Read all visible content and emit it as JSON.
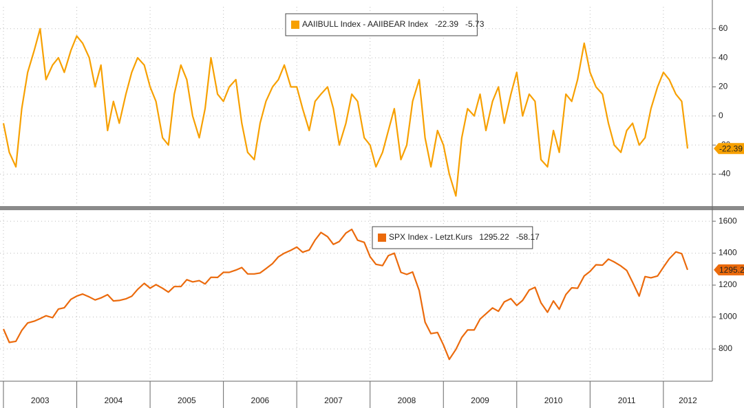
{
  "chart_data": [
    {
      "type": "line",
      "x": [
        2003,
        2003.08,
        2003.17,
        2003.25,
        2003.33,
        2003.42,
        2003.5,
        2003.58,
        2003.67,
        2003.75,
        2003.83,
        2003.92,
        2004,
        2004.08,
        2004.17,
        2004.25,
        2004.33,
        2004.42,
        2004.5,
        2004.58,
        2004.67,
        2004.75,
        2004.83,
        2004.92,
        2005,
        2005.08,
        2005.17,
        2005.25,
        2005.33,
        2005.42,
        2005.5,
        2005.58,
        2005.67,
        2005.75,
        2005.83,
        2005.92,
        2006,
        2006.08,
        2006.17,
        2006.25,
        2006.33,
        2006.42,
        2006.5,
        2006.58,
        2006.67,
        2006.75,
        2006.83,
        2006.92,
        2007,
        2007.08,
        2007.17,
        2007.25,
        2007.33,
        2007.42,
        2007.5,
        2007.58,
        2007.67,
        2007.75,
        2007.83,
        2007.92,
        2008,
        2008.08,
        2008.17,
        2008.25,
        2008.33,
        2008.42,
        2008.5,
        2008.58,
        2008.67,
        2008.75,
        2008.83,
        2008.92,
        2009,
        2009.08,
        2009.17,
        2009.25,
        2009.33,
        2009.42,
        2009.5,
        2009.58,
        2009.67,
        2009.75,
        2009.83,
        2009.92,
        2010,
        2010.08,
        2010.17,
        2010.25,
        2010.33,
        2010.42,
        2010.5,
        2010.58,
        2010.67,
        2010.75,
        2010.83,
        2010.92,
        2011,
        2011.08,
        2011.17,
        2011.25,
        2011.33,
        2011.42,
        2011.5,
        2011.58,
        2011.67,
        2011.75,
        2011.83,
        2011.92,
        2012,
        2012.08,
        2012.17,
        2012.25,
        2012.33
      ],
      "series": [
        {
          "name": "AAIIBULL Index - AAIIBEAR Index",
          "color": "#f7a000",
          "change": -5.73,
          "values": [
            -5,
            -25,
            -35,
            5,
            30,
            45,
            60,
            25,
            35,
            40,
            30,
            45,
            55,
            50,
            40,
            20,
            35,
            -10,
            10,
            -5,
            15,
            30,
            40,
            35,
            20,
            10,
            -15,
            -20,
            15,
            35,
            25,
            0,
            -15,
            5,
            40,
            15,
            10,
            20,
            25,
            -5,
            -25,
            -30,
            -5,
            10,
            20,
            25,
            35,
            20,
            20,
            5,
            -10,
            10,
            15,
            20,
            5,
            -20,
            -5,
            15,
            10,
            -15,
            -20,
            -35,
            -25,
            -10,
            5,
            -30,
            -20,
            10,
            25,
            -15,
            -35,
            -10,
            -20,
            -40,
            -55,
            -15,
            5,
            0,
            15,
            -10,
            10,
            20,
            -5,
            15,
            30,
            0,
            15,
            10,
            -30,
            -35,
            -10,
            -25,
            15,
            10,
            25,
            50,
            30,
            20,
            15,
            -5,
            -20,
            -25,
            -10,
            -5,
            -20,
            -15,
            5,
            20,
            30,
            25,
            15,
            10,
            -22.39
          ]
        }
      ],
      "xlim": [
        2003,
        2012.63
      ],
      "xticks": [
        2003,
        2004,
        2005,
        2006,
        2007,
        2008,
        2009,
        2010,
        2011,
        2012
      ],
      "ylim": [
        -61,
        75
      ],
      "yticks": [
        -40,
        -20,
        0,
        20,
        40,
        60
      ],
      "grid": true
    },
    {
      "type": "line",
      "x": [
        2003,
        2003.08,
        2003.17,
        2003.25,
        2003.33,
        2003.42,
        2003.5,
        2003.58,
        2003.67,
        2003.75,
        2003.83,
        2003.92,
        2004,
        2004.08,
        2004.17,
        2004.25,
        2004.33,
        2004.42,
        2004.5,
        2004.58,
        2004.67,
        2004.75,
        2004.83,
        2004.92,
        2005,
        2005.08,
        2005.17,
        2005.25,
        2005.33,
        2005.42,
        2005.5,
        2005.58,
        2005.67,
        2005.75,
        2005.83,
        2005.92,
        2006,
        2006.08,
        2006.17,
        2006.25,
        2006.33,
        2006.42,
        2006.5,
        2006.58,
        2006.67,
        2006.75,
        2006.83,
        2006.92,
        2007,
        2007.08,
        2007.17,
        2007.25,
        2007.33,
        2007.42,
        2007.5,
        2007.58,
        2007.67,
        2007.75,
        2007.83,
        2007.92,
        2008,
        2008.08,
        2008.17,
        2008.25,
        2008.33,
        2008.42,
        2008.5,
        2008.58,
        2008.67,
        2008.75,
        2008.83,
        2008.92,
        2009,
        2009.08,
        2009.17,
        2009.25,
        2009.33,
        2009.42,
        2009.5,
        2009.58,
        2009.67,
        2009.75,
        2009.83,
        2009.92,
        2010,
        2010.08,
        2010.17,
        2010.25,
        2010.33,
        2010.42,
        2010.5,
        2010.58,
        2010.67,
        2010.75,
        2010.83,
        2010.92,
        2011,
        2011.08,
        2011.17,
        2011.25,
        2011.33,
        2011.42,
        2011.5,
        2011.58,
        2011.67,
        2011.75,
        2011.83,
        2011.92,
        2012,
        2012.08,
        2012.17,
        2012.25,
        2012.33
      ],
      "series": [
        {
          "name": "SPX Index - Letzt.Kurs",
          "color": "#eb6a0c",
          "change": -58.17,
          "values": [
            925,
            841,
            848,
            916,
            963,
            974,
            990,
            1008,
            996,
            1050,
            1058,
            1111,
            1131,
            1144,
            1126,
            1107,
            1120,
            1140,
            1101,
            1104,
            1114,
            1130,
            1173,
            1211,
            1181,
            1203,
            1180,
            1156,
            1191,
            1191,
            1234,
            1220,
            1228,
            1207,
            1249,
            1248,
            1280,
            1280,
            1294,
            1310,
            1270,
            1270,
            1276,
            1303,
            1335,
            1377,
            1400,
            1418,
            1438,
            1406,
            1420,
            1482,
            1530,
            1503,
            1455,
            1473,
            1526,
            1549,
            1481,
            1468,
            1378,
            1330,
            1322,
            1385,
            1400,
            1280,
            1267,
            1282,
            1166,
            968,
            896,
            903,
            825,
            735,
            797,
            872,
            919,
            919,
            987,
            1020,
            1057,
            1036,
            1095,
            1115,
            1073,
            1104,
            1169,
            1186,
            1089,
            1030,
            1101,
            1049,
            1141,
            1183,
            1180,
            1257,
            1286,
            1327,
            1325,
            1363,
            1345,
            1320,
            1292,
            1218,
            1131,
            1253,
            1246,
            1257,
            1312,
            1365,
            1408,
            1397,
            1295.22
          ]
        }
      ],
      "xlim": [
        2003,
        2012.63
      ],
      "xticks": [
        2003,
        2004,
        2005,
        2006,
        2007,
        2008,
        2009,
        2010,
        2011,
        2012
      ],
      "ylim": [
        598,
        1652
      ],
      "yticks": [
        800,
        1000,
        1200,
        1400,
        1600
      ],
      "grid": true
    }
  ]
}
